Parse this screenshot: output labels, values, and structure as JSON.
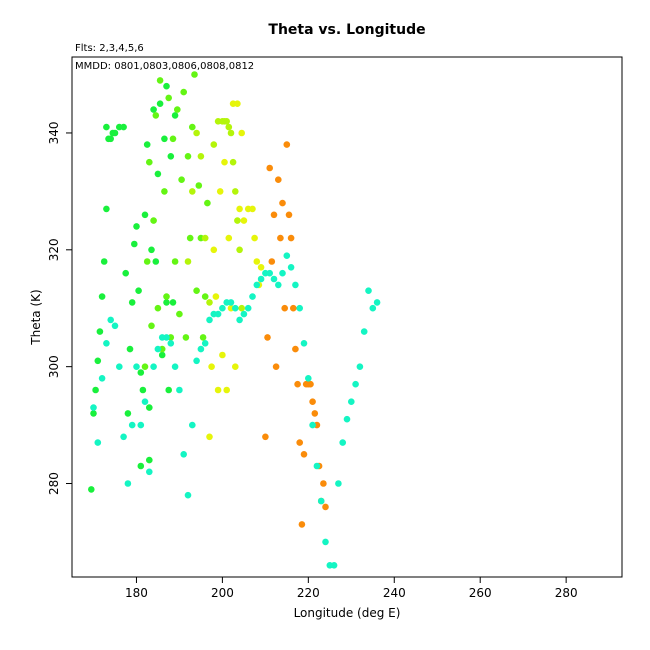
{
  "chart_data": {
    "type": "scatter",
    "title": "Theta vs. Longitude",
    "annotations": {
      "flights": "Flts: 2,3,4,5,6",
      "dates": "MMDD: 0801,0803,0806,0808,0812"
    },
    "xlabel": "Longitude (deg E)",
    "ylabel": "Theta (K)",
    "xlim": [
      165,
      293
    ],
    "ylim": [
      264,
      353
    ],
    "xticks": [
      180,
      200,
      220,
      240,
      260,
      280
    ],
    "yticks": [
      280,
      300,
      320,
      340
    ],
    "legend": "none",
    "grid": false,
    "series": [
      {
        "color": "#19f03c",
        "x": [
          169.5,
          170,
          170.5,
          171,
          171.5,
          172,
          172.5,
          173,
          173,
          173.5,
          174,
          174.5,
          175,
          176,
          177,
          177.5,
          178,
          178.5,
          179,
          179.5,
          180,
          180.5,
          181,
          181,
          181.5,
          182,
          182.5,
          183,
          183,
          183.5,
          184,
          184.5,
          185,
          185.5,
          186,
          186.5,
          187,
          187,
          187.5,
          188,
          188.5,
          189
        ],
        "y": [
          279,
          292,
          296,
          301,
          306,
          312,
          318,
          327,
          341,
          339,
          339,
          340,
          340,
          341,
          341,
          316,
          292,
          303,
          311,
          321,
          324,
          313,
          299,
          283,
          296,
          326,
          338,
          293,
          284,
          320,
          344,
          318,
          333,
          345,
          302,
          339,
          311,
          348,
          296,
          336,
          311,
          343
        ]
      },
      {
        "color": "#64f514",
        "x": [
          182,
          182.5,
          183,
          183.5,
          184,
          184.5,
          185,
          185.5,
          186,
          186.5,
          187,
          187.5,
          188,
          188.5,
          189,
          189.5,
          190,
          190.5,
          191,
          191.5,
          192,
          192.5,
          193,
          193.5,
          194,
          194.5,
          195,
          195.5,
          196,
          196.5
        ],
        "y": [
          300,
          318,
          335,
          307,
          325,
          343,
          310,
          349,
          303,
          330,
          312,
          346,
          305,
          339,
          318,
          344,
          309,
          332,
          347,
          305,
          336,
          322,
          341,
          350,
          313,
          331,
          322,
          305,
          312,
          328
        ]
      },
      {
        "color": "#b4f50a",
        "x": [
          192,
          193,
          194,
          195,
          196,
          197,
          198,
          199,
          200,
          200.5,
          201,
          201.5,
          202,
          202.5,
          203,
          203.5,
          204,
          204.5
        ],
        "y": [
          318,
          330,
          340,
          336,
          322,
          311,
          338,
          342,
          342,
          342,
          342,
          341,
          340,
          335,
          330,
          325,
          320,
          310
        ]
      },
      {
        "color": "#e6f50a",
        "x": [
          197,
          197.5,
          198,
          198.5,
          199,
          199.5,
          200,
          200.5,
          201,
          201.5,
          202,
          202.5,
          203,
          203.5,
          204,
          204.5,
          205,
          206,
          207,
          207.5,
          208,
          208.5,
          209
        ],
        "y": [
          288,
          300,
          320,
          312,
          296,
          330,
          302,
          335,
          296,
          322,
          310,
          345,
          300,
          345,
          327,
          340,
          325,
          327,
          327,
          322,
          318,
          314,
          317
        ]
      },
      {
        "color": "#fa8c0a",
        "x": [
          210,
          210.5,
          211,
          211.5,
          212,
          212.5,
          213,
          213.5,
          214,
          214.5,
          215,
          215.5,
          216,
          216.5,
          217,
          217.5,
          218,
          218.5,
          219,
          219.5,
          220,
          220.5,
          221,
          221.5,
          222,
          222.5,
          223,
          223.5,
          224
        ],
        "y": [
          288,
          305,
          334,
          318,
          326,
          300,
          332,
          322,
          328,
          310,
          338,
          326,
          322,
          310,
          303,
          297,
          287,
          273,
          285,
          297,
          297,
          297,
          294,
          292,
          290,
          283,
          277,
          280,
          276
        ]
      },
      {
        "color": "#14f5c3",
        "x": [
          170,
          171,
          172,
          173,
          174,
          175,
          176,
          177,
          178,
          179,
          180,
          181,
          182,
          183,
          184,
          185,
          186,
          187,
          188,
          189,
          190,
          191,
          192,
          193,
          194,
          195,
          196,
          197,
          198,
          199,
          200,
          201,
          202,
          203,
          204,
          205,
          206,
          207,
          208,
          209,
          210,
          211,
          212,
          213,
          214,
          215,
          216,
          217,
          218,
          219,
          220,
          221,
          222,
          223,
          224,
          225,
          226,
          227,
          228,
          229,
          230,
          231,
          232,
          233,
          234,
          235,
          236
        ],
        "y": [
          293,
          287,
          298,
          304,
          308,
          307,
          300,
          288,
          280,
          290,
          300,
          290,
          294,
          282,
          300,
          303,
          305,
          305,
          304,
          300,
          296,
          285,
          278,
          290,
          301,
          303,
          304,
          308,
          309,
          309,
          310,
          311,
          311,
          310,
          308,
          309,
          310,
          312,
          314,
          315,
          316,
          316,
          315,
          314,
          316,
          319,
          317,
          314,
          310,
          304,
          298,
          290,
          283,
          277,
          270,
          266,
          266,
          280,
          287,
          291,
          294,
          297,
          300,
          306,
          313,
          310,
          311
        ]
      }
    ]
  }
}
